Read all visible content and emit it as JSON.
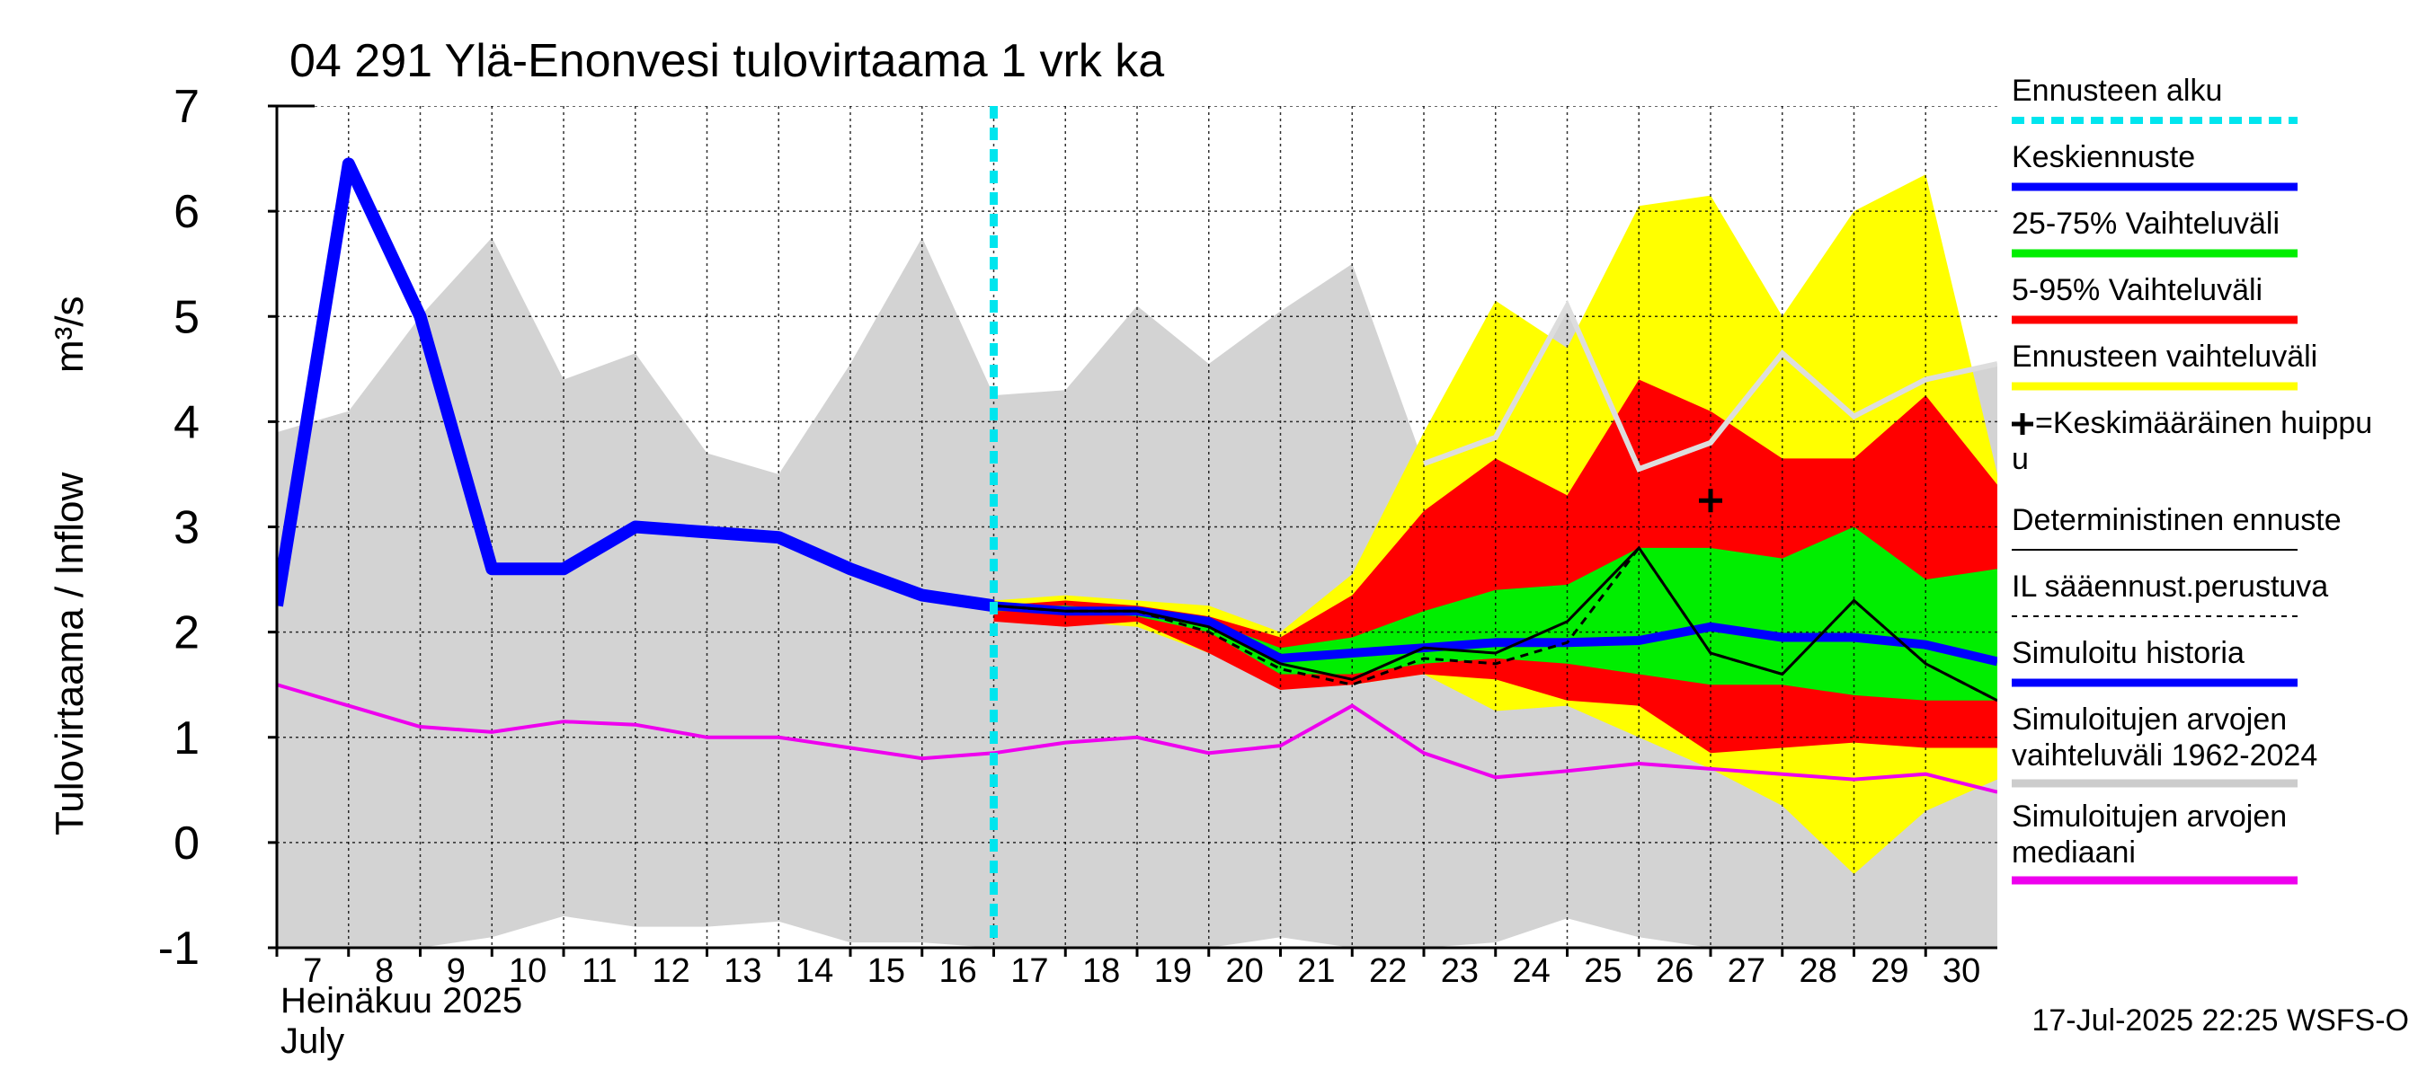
{
  "chart_data": {
    "type": "line",
    "title": "04 291 Ylä-Enonvesi tulovirtaama 1 vrk ka",
    "ylabel": "Tulovirtaama / Inflow",
    "yunit": "m³/s",
    "ylim": [
      -1,
      7
    ],
    "yticks": [
      "-1",
      "0",
      "1",
      "2",
      "3",
      "4",
      "5",
      "6",
      "7"
    ],
    "xlim": [
      7,
      31
    ],
    "xticks": [
      "7",
      "8",
      "9",
      "10",
      "11",
      "12",
      "13",
      "14",
      "15",
      "16",
      "17",
      "18",
      "19",
      "20",
      "21",
      "22",
      "23",
      "24",
      "25",
      "26",
      "27",
      "28",
      "29",
      "30"
    ],
    "month_label_fi": "Heinäkuu  2025",
    "month_label_en": "July",
    "forecast_start": 17,
    "footer": "17-Jul-2025 22:25 WSFS-O",
    "series": {
      "sim_range": {
        "name": "Simuloitujen arvojen vaihteluväli 1962-2024",
        "x": [
          7,
          8,
          9,
          10,
          11,
          12,
          13,
          14,
          15,
          16,
          17,
          18,
          19,
          20,
          21,
          22,
          23,
          24,
          25,
          26,
          27,
          28,
          29,
          30,
          31
        ],
        "upper": [
          3.9,
          4.1,
          5.0,
          5.75,
          4.4,
          4.65,
          3.7,
          3.5,
          4.55,
          5.75,
          4.25,
          4.3,
          5.1,
          4.55,
          5.05,
          5.5,
          3.6,
          3.85,
          5.1,
          3.55,
          3.8,
          4.65,
          4.05,
          4.4,
          4.55
        ],
        "lower": [
          -1.0,
          -1.0,
          -1.0,
          -0.9,
          -0.7,
          -0.8,
          -0.8,
          -0.75,
          -0.95,
          -0.95,
          -1.0,
          -1.0,
          -1.0,
          -1.0,
          -0.9,
          -1.0,
          -1.0,
          -0.95,
          -0.72,
          -0.9,
          -1.0,
          -1.0,
          -1.0,
          -1.0,
          -1.0
        ]
      },
      "band_5_95_outer": {
        "name": "Ennusteen vaihteluväli",
        "x": [
          17,
          18,
          19,
          20,
          21,
          22,
          23,
          24,
          25,
          26,
          27,
          28,
          29,
          30,
          31
        ],
        "upper": [
          2.3,
          2.35,
          2.3,
          2.25,
          2.0,
          2.55,
          3.9,
          5.15,
          4.7,
          6.05,
          6.15,
          5.0,
          6.0,
          6.35,
          3.5
        ],
        "lower": [
          2.1,
          2.1,
          2.05,
          1.8,
          1.5,
          1.5,
          1.6,
          1.25,
          1.3,
          1.0,
          0.7,
          0.35,
          -0.3,
          0.3,
          0.6
        ]
      },
      "band_5_95": {
        "name": "5-95% Vaihteluväli",
        "x": [
          17,
          18,
          19,
          20,
          21,
          22,
          23,
          24,
          25,
          26,
          27,
          28,
          29,
          30,
          31
        ],
        "upper": [
          2.25,
          2.3,
          2.25,
          2.15,
          1.95,
          2.35,
          3.15,
          3.65,
          3.3,
          4.4,
          4.1,
          3.65,
          3.65,
          4.25,
          3.4
        ],
        "lower": [
          2.1,
          2.05,
          2.1,
          1.8,
          1.45,
          1.5,
          1.6,
          1.55,
          1.35,
          1.3,
          0.85,
          0.9,
          0.95,
          0.9,
          0.9
        ]
      },
      "band_25_75": {
        "name": "25-75% Vaihteluväli",
        "x": [
          17,
          18,
          19,
          20,
          21,
          22,
          23,
          24,
          25,
          26,
          27,
          28,
          29,
          30,
          31
        ],
        "upper": [
          2.25,
          2.25,
          2.2,
          2.1,
          1.85,
          1.95,
          2.2,
          2.4,
          2.45,
          2.8,
          2.8,
          2.7,
          3.0,
          2.5,
          2.6
        ],
        "lower": [
          2.2,
          2.2,
          2.15,
          2.0,
          1.6,
          1.6,
          1.7,
          1.75,
          1.7,
          1.6,
          1.5,
          1.5,
          1.4,
          1.35,
          1.35
        ]
      },
      "median_forecast": {
        "name": "Keskiennuste",
        "x": [
          17,
          18,
          19,
          20,
          21,
          22,
          23,
          24,
          25,
          26,
          27,
          28,
          29,
          30,
          31
        ],
        "y": [
          2.25,
          2.2,
          2.2,
          2.1,
          1.75,
          1.8,
          1.85,
          1.9,
          1.9,
          1.92,
          2.05,
          1.95,
          1.95,
          1.88,
          1.72
        ]
      },
      "simulated_history": {
        "name": "Simuloitu historia",
        "x": [
          7,
          8,
          9,
          10,
          11,
          12,
          13,
          14,
          15,
          16,
          17
        ],
        "y": [
          2.25,
          6.45,
          5.0,
          2.6,
          2.6,
          3.0,
          2.95,
          2.9,
          2.6,
          2.35,
          2.25
        ]
      },
      "deterministic": {
        "name": "Deterministinen ennuste",
        "x": [
          17,
          18,
          19,
          20,
          21,
          22,
          23,
          24,
          25,
          26,
          27,
          28,
          29,
          30,
          31
        ],
        "y": [
          2.25,
          2.2,
          2.2,
          2.05,
          1.7,
          1.55,
          1.85,
          1.8,
          2.1,
          2.8,
          1.8,
          1.6,
          2.3,
          1.7,
          1.35
        ]
      },
      "il_forecast": {
        "name": "IL sääennust.perustuva",
        "x": [
          17,
          18,
          19,
          20,
          21,
          22,
          23,
          24,
          25,
          26,
          27,
          28,
          29,
          30,
          31
        ],
        "y": [
          2.25,
          2.2,
          2.2,
          2.0,
          1.65,
          1.5,
          1.75,
          1.7,
          1.9,
          2.8,
          1.8,
          1.6,
          2.3,
          1.7,
          1.35
        ]
      },
      "sim_median": {
        "name": "Simuloitujen arvojen mediaani",
        "x": [
          7,
          8,
          9,
          10,
          11,
          12,
          13,
          14,
          15,
          16,
          17,
          18,
          19,
          20,
          21,
          22,
          23,
          24,
          25,
          26,
          27,
          28,
          29,
          30,
          31
        ],
        "y": [
          1.5,
          1.3,
          1.1,
          1.05,
          1.15,
          1.12,
          1.0,
          1.0,
          0.9,
          0.8,
          0.85,
          0.95,
          1.0,
          0.85,
          0.92,
          1.3,
          0.85,
          0.62,
          0.68,
          0.75,
          0.7,
          0.65,
          0.6,
          0.65,
          0.48
        ]
      },
      "upper_gray_line": {
        "x": [
          23,
          24,
          25,
          26,
          27,
          28,
          29,
          30,
          31
        ],
        "y": [
          3.6,
          3.85,
          5.1,
          3.55,
          3.8,
          4.65,
          4.05,
          4.4,
          4.55
        ]
      },
      "mean_peak": {
        "name": "=Keskimääräinen huippu",
        "x": 27,
        "y": 3.25
      }
    },
    "legend": [
      {
        "label": "Ennusteen alku",
        "color": "#00e5ee",
        "style": "dashed"
      },
      {
        "label": "Keskiennuste",
        "color": "#0000ff",
        "style": "solid"
      },
      {
        "label": "25-75% Vaihteluväli",
        "color": "#00ee00",
        "style": "solid"
      },
      {
        "label": "5-95% Vaihteluväli",
        "color": "#ff0000",
        "style": "solid"
      },
      {
        "label": "Ennusteen vaihteluväli",
        "color": "#ffff00",
        "style": "solid"
      },
      {
        "label": "=Keskimääräinen huippu",
        "label_line2": "u",
        "color": "#000000",
        "style": "plus"
      },
      {
        "label": "Deterministinen ennuste",
        "color": "#000000",
        "style": "thin"
      },
      {
        "label": "IL sääennust.perustuva",
        "color": "#000000",
        "style": "dotted"
      },
      {
        "label": "Simuloitu historia",
        "color": "#0000ff",
        "style": "solid"
      },
      {
        "label": "Simuloitujen arvojen",
        "label_line2": "vaihteluväli 1962-2024",
        "color": "#cccccc",
        "style": "solid"
      },
      {
        "label": "Simuloitujen arvojen",
        "label_line2": "mediaani",
        "color": "#ee00ee",
        "style": "solid"
      }
    ]
  }
}
